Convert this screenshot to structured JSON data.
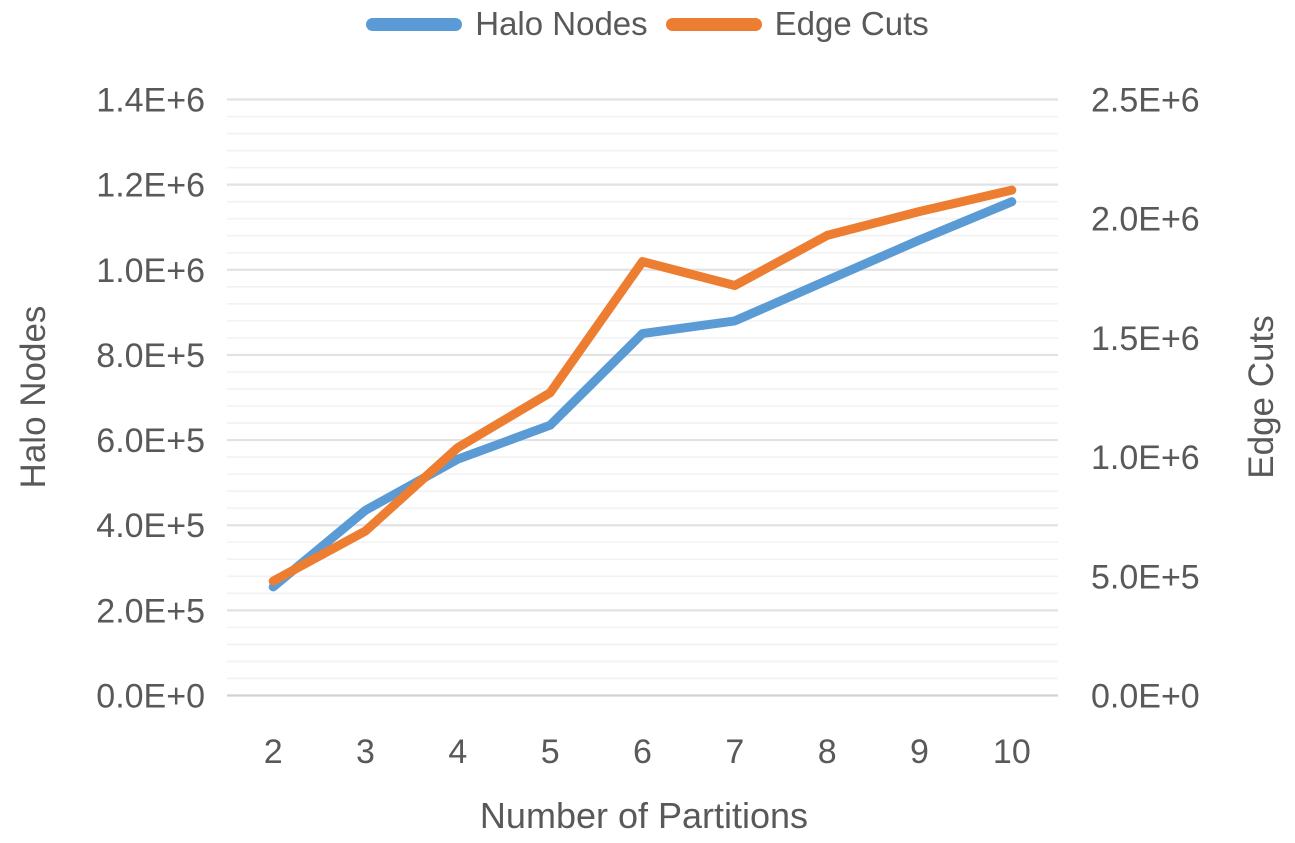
{
  "chart_data": {
    "type": "line",
    "x": [
      2,
      3,
      4,
      5,
      6,
      7,
      8,
      9,
      10
    ],
    "xlabel": "Number of Partitions",
    "legend_position": "top",
    "grid": true,
    "left_axis": {
      "title": "Halo Nodes",
      "min": 0,
      "max": 1400000,
      "major": 200000,
      "minor": 40000,
      "ticks": [
        "0.0E+0",
        "2.0E+5",
        "4.0E+5",
        "6.0E+5",
        "8.0E+5",
        "1.0E+6",
        "1.2E+6",
        "1.4E+6"
      ]
    },
    "right_axis": {
      "title": "Edge Cuts",
      "min": 0,
      "max": 2500000,
      "major": 500000,
      "ticks": [
        "0.0E+0",
        "5.0E+5",
        "1.0E+6",
        "1.5E+6",
        "2.0E+6",
        "2.5E+6"
      ]
    },
    "series": [
      {
        "name": "Halo Nodes",
        "axis": "left",
        "color": "#5B9BD5",
        "values": [
          255000,
          435000,
          555000,
          635000,
          850000,
          880000,
          975000,
          1070000,
          1160000
        ]
      },
      {
        "name": "Edge Cuts",
        "axis": "right",
        "color": "#ED7D31",
        "values": [
          480000,
          690000,
          1040000,
          1270000,
          1820000,
          1720000,
          1930000,
          2030000,
          2120000
        ]
      }
    ]
  },
  "colors": {
    "text": "#595959",
    "grid_major": "#E2E2E2",
    "grid_minor": "#F2F2F2",
    "axis_line": "#D2D2D2"
  }
}
